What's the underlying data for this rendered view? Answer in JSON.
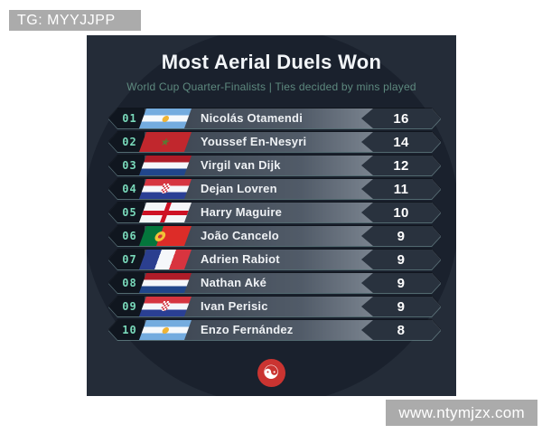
{
  "watermarks": {
    "top": "TG: MYYJJPP",
    "bottom": "www.ntymjzx.com"
  },
  "header": {
    "title": "Most Aerial Duels Won",
    "subtitle": "World Cup Quarter-Finalists | Ties decided by mins played"
  },
  "chart_data": {
    "type": "table",
    "title": "Most Aerial Duels Won",
    "subtitle": "World Cup Quarter-Finalists | Ties decided by mins played",
    "columns": [
      "rank",
      "country",
      "player",
      "aerial_duels_won"
    ],
    "rows": [
      {
        "rank": "01",
        "country": "argentina",
        "player": "Nicolás Otamendi",
        "value": "16"
      },
      {
        "rank": "02",
        "country": "morocco",
        "player": "Youssef En-Nesyri",
        "value": "14"
      },
      {
        "rank": "03",
        "country": "netherlands",
        "player": "Virgil van Dijk",
        "value": "12"
      },
      {
        "rank": "04",
        "country": "croatia",
        "player": "Dejan Lovren",
        "value": "11"
      },
      {
        "rank": "05",
        "country": "england",
        "player": "Harry Maguire",
        "value": "10"
      },
      {
        "rank": "06",
        "country": "portugal",
        "player": "João Cancelo",
        "value": "9"
      },
      {
        "rank": "07",
        "country": "france",
        "player": "Adrien Rabiot",
        "value": "9"
      },
      {
        "rank": "08",
        "country": "netherlands",
        "player": "Nathan Aké",
        "value": "9"
      },
      {
        "rank": "09",
        "country": "croatia",
        "player": "Ivan Perisic",
        "value": "9"
      },
      {
        "rank": "10",
        "country": "argentina",
        "player": "Enzo Fernández",
        "value": "8"
      }
    ]
  },
  "footer": {
    "logo_icon": "red-swirl-logo"
  },
  "colors": {
    "card_bg": "#242c38",
    "circle_bg": "#1a212d",
    "accent_teal": "#79d9ba",
    "subtitle_teal": "#5e8a7f",
    "row_chevron": "#29323e",
    "logo_red": "#ca3431",
    "watermark_bg": "#ababab"
  }
}
